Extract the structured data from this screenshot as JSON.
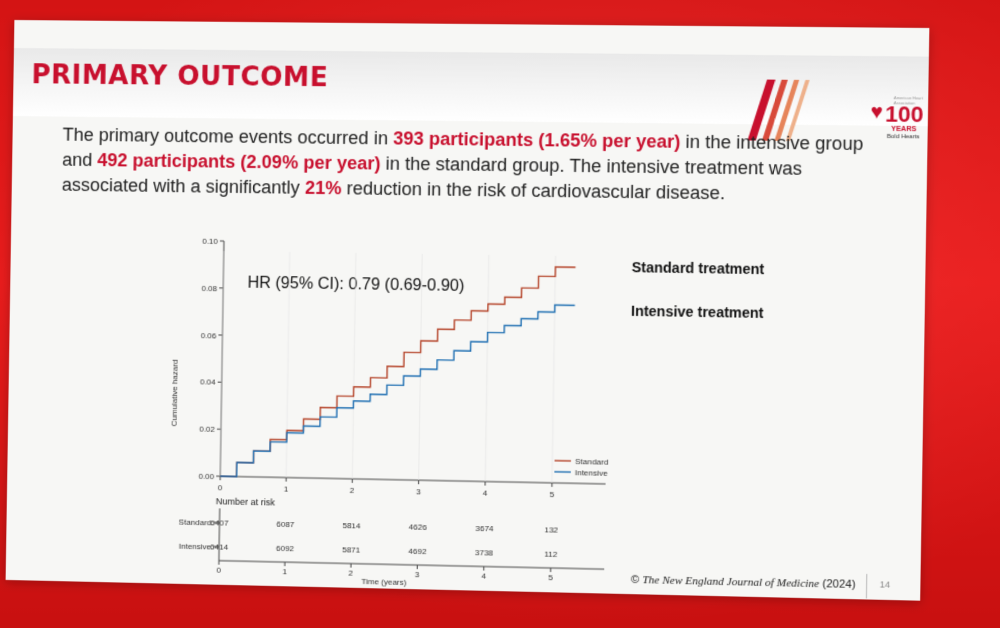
{
  "slide": {
    "title": "PRIMARY OUTCOME",
    "summary": {
      "p1": "The primary outcome events occurred in ",
      "h1": "393 participants (1.65% per year)",
      "p2": " in the intensive group and ",
      "h2": "492 participants (2.09% per year)",
      "p3": " in the standard group. The intensive treatment was associated with a significantly ",
      "h3": "21%",
      "p4": " reduction in the risk of cardiovascular disease."
    },
    "logo": {
      "number": "100",
      "years": "YEARS",
      "tagline": "Bold Hearts"
    },
    "copyright_symbol": "©",
    "copyright_journal": "The New England Journal of Medicine",
    "copyright_year": "(2024)",
    "page_number": "14"
  },
  "colors": {
    "accent": "#c8102e",
    "standard": "#b5442a",
    "intensive": "#1f6fb2"
  },
  "chart_data": {
    "type": "line",
    "ylabel": "Cumulative hazard",
    "xlabel": "Time (years)",
    "xlim": [
      0,
      5.8
    ],
    "ylim": [
      0,
      0.1
    ],
    "yticks": [
      "0.00",
      "0.02",
      "0.04",
      "0.06",
      "0.08",
      "0.10"
    ],
    "xticks": [
      "0",
      "1",
      "2",
      "3",
      "4",
      "5"
    ],
    "annotation": "HR (95% CI): 0.79 (0.69-0.90)",
    "legend_small": [
      "Standard",
      "Intensive"
    ],
    "legend_big": [
      "Standard treatment",
      "Intensive treatment"
    ],
    "series": [
      {
        "name": "Standard",
        "color": "#b5442a",
        "x": [
          0,
          0.25,
          0.5,
          0.75,
          1.0,
          1.25,
          1.5,
          1.75,
          2.0,
          2.25,
          2.5,
          2.75,
          3.0,
          3.25,
          3.5,
          3.75,
          4.0,
          4.25,
          4.5,
          4.75,
          5.0,
          5.3
        ],
        "y": [
          0.0,
          0.006,
          0.011,
          0.016,
          0.02,
          0.025,
          0.03,
          0.035,
          0.039,
          0.043,
          0.048,
          0.054,
          0.059,
          0.064,
          0.068,
          0.072,
          0.075,
          0.078,
          0.082,
          0.087,
          0.091,
          0.091
        ]
      },
      {
        "name": "Intensive",
        "color": "#1f6fb2",
        "x": [
          0,
          0.25,
          0.5,
          0.75,
          1.0,
          1.25,
          1.5,
          1.75,
          2.0,
          2.25,
          2.5,
          2.75,
          3.0,
          3.25,
          3.5,
          3.75,
          4.0,
          4.25,
          4.5,
          4.75,
          5.0,
          5.3
        ],
        "y": [
          0.0,
          0.006,
          0.011,
          0.015,
          0.019,
          0.022,
          0.026,
          0.03,
          0.033,
          0.036,
          0.04,
          0.044,
          0.047,
          0.051,
          0.055,
          0.059,
          0.063,
          0.066,
          0.069,
          0.072,
          0.075,
          0.075
        ]
      }
    ],
    "number_at_risk": {
      "title": "Number at risk",
      "rows": [
        {
          "label": "Standard",
          "values": [
            "6407",
            "6087",
            "5814",
            "4626",
            "3674",
            "132"
          ]
        },
        {
          "label": "Intensive",
          "values": [
            "6414",
            "6092",
            "5871",
            "4692",
            "3738",
            "112"
          ]
        }
      ]
    }
  }
}
